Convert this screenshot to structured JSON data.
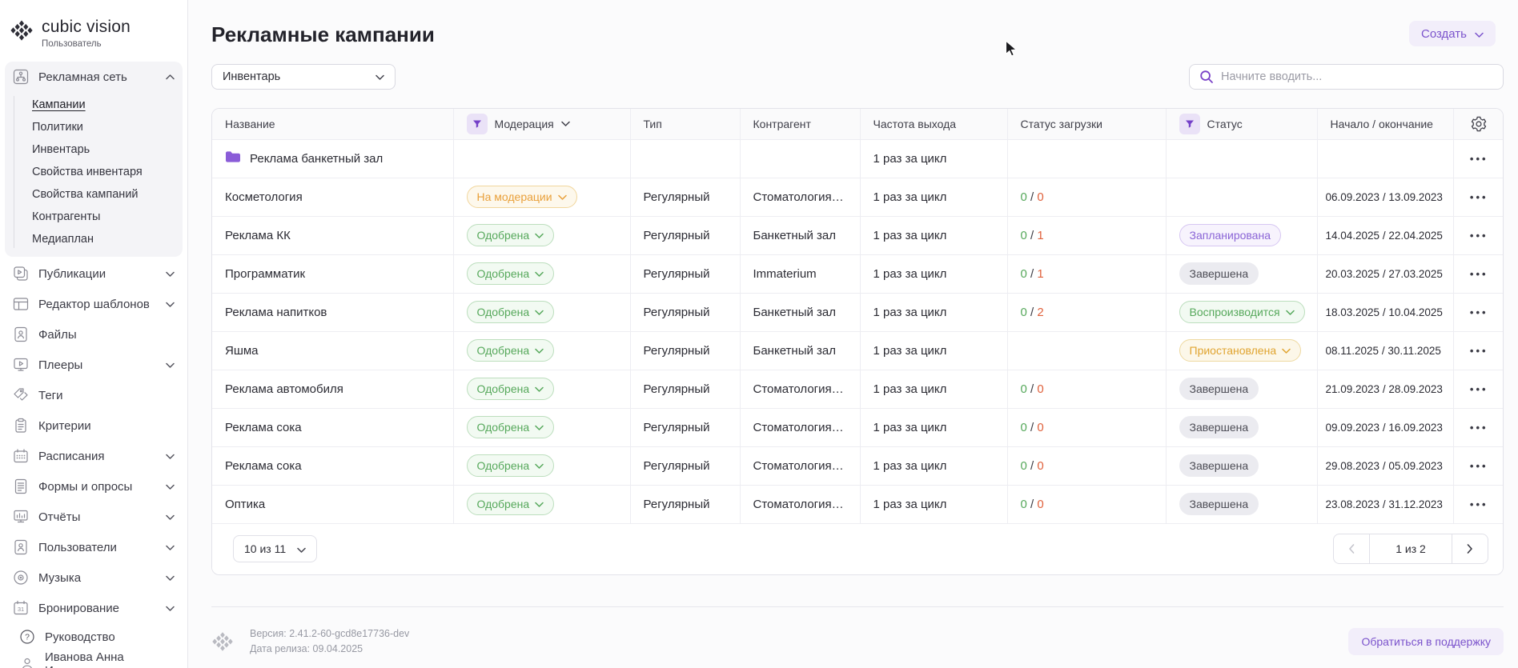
{
  "brand": {
    "name": "cubic vision",
    "role": "Пользователь"
  },
  "sidebar": {
    "groups": [
      {
        "key": "ad-network",
        "label": "Рекламная сеть",
        "icon": "network-icon",
        "expanded": true,
        "children": [
          {
            "key": "campaigns",
            "label": "Кампании",
            "active": true
          },
          {
            "key": "policies",
            "label": "Политики"
          },
          {
            "key": "inventory",
            "label": "Инвентарь"
          },
          {
            "key": "inventory-properties",
            "label": "Свойства инвентаря"
          },
          {
            "key": "campaign-properties",
            "label": "Свойства кампаний"
          },
          {
            "key": "counterparties",
            "label": "Контрагенты"
          },
          {
            "key": "mediaplan",
            "label": "Медиаплан"
          }
        ]
      },
      {
        "key": "publications",
        "label": "Публикации",
        "icon": "publications-icon",
        "collapsible": true
      },
      {
        "key": "template-editor",
        "label": "Редактор шаблонов",
        "icon": "template-editor-icon",
        "collapsible": true
      },
      {
        "key": "files",
        "label": "Файлы",
        "icon": "files-icon"
      },
      {
        "key": "players",
        "label": "Плееры",
        "icon": "players-icon",
        "collapsible": true
      },
      {
        "key": "tags",
        "label": "Теги",
        "icon": "tags-icon"
      },
      {
        "key": "criteria",
        "label": "Критерии",
        "icon": "criteria-icon"
      },
      {
        "key": "schedules",
        "label": "Расписания",
        "icon": "schedules-icon",
        "collapsible": true
      },
      {
        "key": "forms-surveys",
        "label": "Формы и опросы",
        "icon": "forms-icon",
        "collapsible": true
      },
      {
        "key": "reports",
        "label": "Отчёты",
        "icon": "reports-icon",
        "collapsible": true
      },
      {
        "key": "users",
        "label": "Пользователи",
        "icon": "users-icon",
        "collapsible": true
      },
      {
        "key": "music",
        "label": "Музыка",
        "icon": "music-icon",
        "collapsible": true
      },
      {
        "key": "booking",
        "label": "Бронирование",
        "icon": "booking-icon",
        "collapsible": true
      }
    ],
    "help": {
      "label": "Руководство"
    },
    "user": {
      "name": "Иванова Анна Ивановна"
    }
  },
  "page": {
    "title": "Рекламные кампании",
    "create_button": "Создать",
    "view_select": "Инвентарь",
    "search_placeholder": "Начните вводить..."
  },
  "table": {
    "columns": [
      {
        "label": "Название"
      },
      {
        "label": "Модерация",
        "filter": true,
        "sort_chevron": true
      },
      {
        "label": "Тип"
      },
      {
        "label": "Контрагент"
      },
      {
        "label": "Частота выхода"
      },
      {
        "label": "Статус загрузки"
      },
      {
        "label": "Статус",
        "filter": true
      },
      {
        "label": "Начало / окончание"
      },
      {
        "label": "",
        "settings": true
      }
    ],
    "rows": [
      {
        "name": "Реклама банкетный зал",
        "folder": true,
        "frequency": "1 раз за цикл"
      },
      {
        "name": "Косметология",
        "moderation": {
          "label": "На модерации",
          "variant": "warning",
          "chevron": true
        },
        "type": "Регулярный",
        "counterparty": "Стоматология Н...",
        "frequency": "1 раз за цикл",
        "load": {
          "done": "0",
          "total": "0"
        },
        "dates": "06.09.2023 / 13.09.2023"
      },
      {
        "name": "Реклама КК",
        "moderation": {
          "label": "Одобрена",
          "variant": "success",
          "chevron": true
        },
        "type": "Регулярный",
        "counterparty": "Банкетный зал",
        "frequency": "1 раз за цикл",
        "load": {
          "done": "0",
          "total": "1"
        },
        "status": {
          "label": "Запланирована",
          "variant": "planned",
          "chevron": false
        },
        "dates": "14.04.2025 / 22.04.2025"
      },
      {
        "name": "Программатик",
        "moderation": {
          "label": "Одобрена",
          "variant": "success",
          "chevron": true
        },
        "type": "Регулярный",
        "counterparty": "Immaterium",
        "frequency": "1 раз за цикл",
        "load": {
          "done": "0",
          "total": "1"
        },
        "status": {
          "label": "Завершена",
          "variant": "finished",
          "chevron": false
        },
        "dates": "20.03.2025 / 27.03.2025"
      },
      {
        "name": "Реклама напитков",
        "moderation": {
          "label": "Одобрена",
          "variant": "success",
          "chevron": true
        },
        "type": "Регулярный",
        "counterparty": "Банкетный зал",
        "frequency": "1 раз за цикл",
        "load": {
          "done": "0",
          "total": "2"
        },
        "status": {
          "label": "Воспроизводится",
          "variant": "playing",
          "chevron": true
        },
        "dates": "18.03.2025 / 10.04.2025"
      },
      {
        "name": "Яшма",
        "moderation": {
          "label": "Одобрена",
          "variant": "success",
          "chevron": true
        },
        "type": "Регулярный",
        "counterparty": "Банкетный зал",
        "frequency": "1 раз за цикл",
        "status": {
          "label": "Приостановлена",
          "variant": "paused",
          "chevron": true
        },
        "dates": "08.11.2025 / 30.11.2025"
      },
      {
        "name": "Реклама автомобиля",
        "moderation": {
          "label": "Одобрена",
          "variant": "success",
          "chevron": true
        },
        "type": "Регулярный",
        "counterparty": "Стоматология Н...",
        "frequency": "1 раз за цикл",
        "load": {
          "done": "0",
          "total": "0"
        },
        "status": {
          "label": "Завершена",
          "variant": "finished",
          "chevron": false
        },
        "dates": "21.09.2023 / 28.09.2023"
      },
      {
        "name": "Реклама сока",
        "moderation": {
          "label": "Одобрена",
          "variant": "success",
          "chevron": true
        },
        "type": "Регулярный",
        "counterparty": "Стоматология Н...",
        "frequency": "1 раз за цикл",
        "load": {
          "done": "0",
          "total": "0"
        },
        "status": {
          "label": "Завершена",
          "variant": "finished",
          "chevron": false
        },
        "dates": "09.09.2023 / 16.09.2023"
      },
      {
        "name": "Реклама сока",
        "moderation": {
          "label": "Одобрена",
          "variant": "success",
          "chevron": true
        },
        "type": "Регулярный",
        "counterparty": "Стоматология Н...",
        "frequency": "1 раз за цикл",
        "load": {
          "done": "0",
          "total": "0"
        },
        "status": {
          "label": "Завершена",
          "variant": "finished",
          "chevron": false
        },
        "dates": "29.08.2023 / 05.09.2023"
      },
      {
        "name": "Оптика",
        "moderation": {
          "label": "Одобрена",
          "variant": "success",
          "chevron": true
        },
        "type": "Регулярный",
        "counterparty": "Стоматология Н...",
        "frequency": "1 раз за цикл",
        "load": {
          "done": "0",
          "total": "0"
        },
        "status": {
          "label": "Завершена",
          "variant": "finished",
          "chevron": false
        },
        "dates": "23.08.2023 / 31.12.2023"
      }
    ]
  },
  "pagination": {
    "page_size": "10 из 11",
    "page_indicator": "1 из 2"
  },
  "footer": {
    "version": "Версия: 2.41.2-60-gcd8e17736-dev",
    "release_date": "Дата релиза: 09.04.2025",
    "support_button": "Обратиться в поддержку"
  },
  "colors": {
    "accent_purple": "#7b53cc",
    "filter_icon_purple": "#7440c8",
    "success_green": "#56a85b",
    "warning_orange": "#e9a03a",
    "paused_yellow": "#e0a430",
    "danger_red": "#e0613c",
    "finished_gray": "#4c4c55",
    "folder_purple": "#8a5cd8"
  }
}
